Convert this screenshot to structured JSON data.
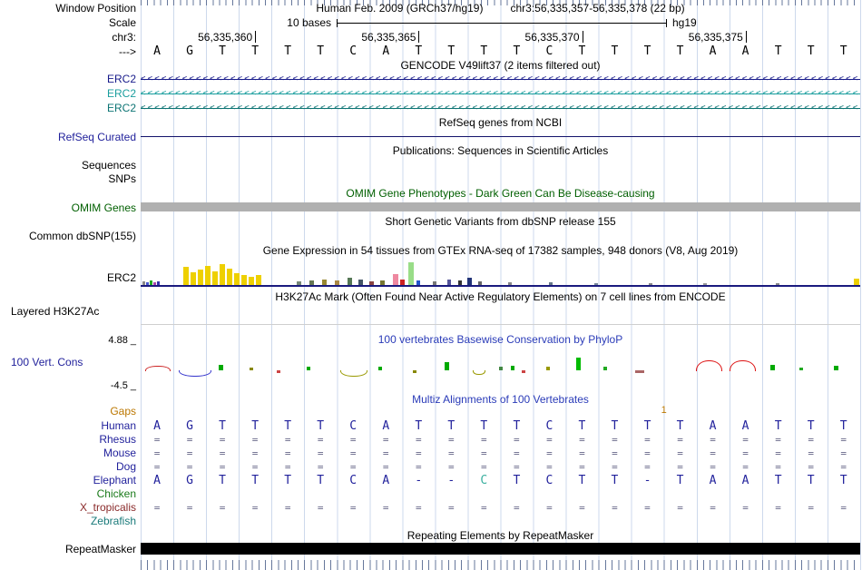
{
  "colors": {
    "guide": "#cdd9ec",
    "tick": "#66779b",
    "link_blue": "#22229c",
    "title_blue": "#2a3bb8",
    "omim_green": "#005f00",
    "gaps_orange": "#bb7700",
    "gencode1": "#171a8a",
    "gencode2": "#1b9e9e",
    "gencode3": "#0d7474",
    "equals": "#666688",
    "gtex_baseline": "#1a1a7e",
    "omim_bar": "#b0b0b0",
    "repeat_bar": "#000000",
    "refseq_line": "#14146b",
    "chicken_green": "#1a7a1a",
    "xtrop_red": "#8a2a2a",
    "zebrafish_teal": "#1a7a7a",
    "elephant_mismatch": "#3aaf9f"
  },
  "header": {
    "window_position_label": "Window Position",
    "assembly_title": "Human Feb. 2009 (GRCh37/hg19)",
    "position": "chr3:56,335,357-56,335,378 (22 bp)",
    "scale_label": "Scale",
    "scale_value": "10 bases",
    "assembly_tag": "hg19",
    "chrom_label": "chr3:",
    "strand_label": "--->",
    "ruler_coords": [
      {
        "text": "56,335,360",
        "base": 4
      },
      {
        "text": "56,335,365",
        "base": 9
      },
      {
        "text": "56,335,370",
        "base": 14
      },
      {
        "text": "56,335,375",
        "base": 19
      }
    ]
  },
  "sequence": [
    "A",
    "G",
    "T",
    "T",
    "T",
    "T",
    "C",
    "A",
    "T",
    "T",
    "T",
    "T",
    "C",
    "T",
    "T",
    "T",
    "T",
    "A",
    "A",
    "T",
    "T",
    "T"
  ],
  "tracks": {
    "gencode": {
      "title": "GENCODE V49lift37 (2 items filtered out)",
      "arrow_char": "<",
      "items": [
        {
          "label": "ERC2",
          "color_key": "gencode1"
        },
        {
          "label": "ERC2",
          "color_key": "gencode2"
        },
        {
          "label": "ERC2",
          "color_key": "gencode3"
        }
      ]
    },
    "refseq": {
      "title": "RefSeq genes from NCBI",
      "label": "RefSeq Curated"
    },
    "publications": {
      "title": "Publications: Sequences in Scientific Articles",
      "labels": [
        "Sequences",
        "SNPs"
      ]
    },
    "omim": {
      "title": "OMIM Gene Phenotypes - Dark Green Can Be Disease-causing",
      "label": "OMIM Genes"
    },
    "dbsnp": {
      "title": "Short Genetic Variants from dbSNP release 155",
      "label": "Common dbSNP(155)"
    },
    "gtex": {
      "title": "Gene Expression in 54 tissues from GTEx RNA-seq of 17382 samples, 948 donors (V8, Aug 2019)",
      "label": "ERC2",
      "bars": [
        [
          2,
          4,
          "#888888",
          3
        ],
        [
          6,
          3,
          "#4455cc",
          3
        ],
        [
          10,
          5,
          "#22aa22",
          3
        ],
        [
          14,
          3,
          "#aa44aa",
          3
        ],
        [
          18,
          4,
          "#3333aa",
          3
        ],
        [
          47,
          20,
          "#eed000",
          6
        ],
        [
          55,
          14,
          "#eed000",
          6
        ],
        [
          63,
          17,
          "#eed000",
          6
        ],
        [
          71,
          21,
          "#eed000",
          6
        ],
        [
          79,
          15,
          "#eed000",
          6
        ],
        [
          87,
          23,
          "#eed000",
          6
        ],
        [
          95,
          18,
          "#eed000",
          6
        ],
        [
          103,
          13,
          "#eed000",
          6
        ],
        [
          111,
          11,
          "#eed000",
          6
        ],
        [
          119,
          9,
          "#eed000",
          6
        ],
        [
          127,
          11,
          "#eed000",
          6
        ],
        [
          172,
          4,
          "#778877",
          5
        ],
        [
          186,
          5,
          "#667755",
          5
        ],
        [
          200,
          6,
          "#998833",
          5
        ],
        [
          214,
          5,
          "#aa8844",
          5
        ],
        [
          228,
          8,
          "#557755",
          5
        ],
        [
          240,
          6,
          "#445566",
          5
        ],
        [
          252,
          4,
          "#884444",
          5
        ],
        [
          264,
          5,
          "#777733",
          5
        ],
        [
          278,
          12,
          "#ee88a0",
          6
        ],
        [
          286,
          6,
          "#cc2222",
          5
        ],
        [
          295,
          25,
          "#99dd88",
          6
        ],
        [
          304,
          5,
          "#2255cc",
          4
        ],
        [
          322,
          4,
          "#777777",
          4
        ],
        [
          338,
          6,
          "#555599",
          4
        ],
        [
          350,
          5,
          "#333333",
          4
        ],
        [
          360,
          8,
          "#223377",
          5
        ],
        [
          372,
          4,
          "#666666",
          4
        ],
        [
          405,
          3,
          "#888888",
          4
        ],
        [
          450,
          3,
          "#667788",
          4
        ],
        [
          500,
          2,
          "#778899",
          4
        ],
        [
          560,
          2,
          "#888888",
          4
        ],
        [
          620,
          2,
          "#999999",
          4
        ],
        [
          700,
          2,
          "#888888",
          4
        ],
        [
          786,
          7,
          "#eed000",
          6
        ]
      ]
    },
    "h3k27ac": {
      "title": "H3K27Ac Mark (Often Found Near Active Regulatory Elements) on 7 cell lines from ENCODE",
      "label": "Layered H3K27Ac"
    },
    "phylop": {
      "title": "100 vertebrates Basewise Conservation by PhyloP",
      "label": "100 Vert. Cons",
      "max_label": "4.88 _",
      "min_label": "-4.5 _",
      "marks": [
        [
          5,
          26,
          5,
          "#cc2222",
          "bump"
        ],
        [
          42,
          34,
          6,
          "#3333cc",
          "dip"
        ],
        [
          86,
          5,
          6,
          "#00aa00",
          "up"
        ],
        [
          120,
          4,
          3,
          "#888800",
          "up"
        ],
        [
          150,
          4,
          3,
          "#cc4444",
          "down"
        ],
        [
          183,
          4,
          4,
          "#00aa00",
          "up"
        ],
        [
          220,
          28,
          6,
          "#999900",
          "dip"
        ],
        [
          262,
          4,
          4,
          "#00aa00",
          "up"
        ],
        [
          300,
          4,
          3,
          "#888800",
          "down"
        ],
        [
          335,
          5,
          9,
          "#00aa00",
          "up"
        ],
        [
          366,
          12,
          4,
          "#999900",
          "dip"
        ],
        [
          395,
          4,
          4,
          "#448844",
          "up"
        ],
        [
          408,
          4,
          5,
          "#00aa00",
          "up"
        ],
        [
          420,
          4,
          3,
          "#cc4444",
          "down"
        ],
        [
          447,
          4,
          4,
          "#999900",
          "up"
        ],
        [
          480,
          5,
          14,
          "#00bb00",
          "up"
        ],
        [
          510,
          4,
          4,
          "#22aa22",
          "up"
        ],
        [
          545,
          10,
          3,
          "#aa6666",
          "down"
        ],
        [
          612,
          27,
          11,
          "#dd1111",
          "bump"
        ],
        [
          649,
          27,
          11,
          "#dd1111",
          "bump"
        ],
        [
          694,
          5,
          6,
          "#00aa00",
          "up"
        ],
        [
          726,
          4,
          3,
          "#22aa22",
          "up"
        ],
        [
          764,
          5,
          5,
          "#00aa00",
          "up"
        ]
      ]
    },
    "multiz": {
      "title": "Multiz Alignments of 100 Vertebrates",
      "gaps_label": "Gaps",
      "gap_marks": [
        {
          "boundary": 16,
          "text": "1"
        }
      ],
      "rows": [
        {
          "label": "Human",
          "type": "seq",
          "color_key": "link_blue",
          "cells": [
            "A",
            "G",
            "T",
            "T",
            "T",
            "T",
            "C",
            "A",
            "T",
            "T",
            "T",
            "T",
            "C",
            "T",
            "T",
            "T",
            "T",
            "A",
            "A",
            "T",
            "T",
            "T"
          ]
        },
        {
          "label": "Rhesus",
          "type": "fill",
          "fill": "=",
          "color_key": "link_blue"
        },
        {
          "label": "Mouse",
          "type": "fill",
          "fill": "=",
          "color_key": "link_blue"
        },
        {
          "label": "Dog",
          "type": "fill",
          "fill": "=",
          "color_key": "link_blue"
        },
        {
          "label": "Elephant",
          "type": "seq",
          "color_key": "link_blue",
          "highlight_col": 11,
          "cells": [
            "A",
            "G",
            "T",
            "T",
            "T",
            "T",
            "C",
            "A",
            "-",
            "-",
            "C",
            "T",
            "C",
            "T",
            "T",
            "-",
            "T",
            "A",
            "A",
            "T",
            "T",
            "T"
          ]
        },
        {
          "label": "Chicken",
          "type": "empty",
          "color_key": "chicken_green"
        },
        {
          "label": "X_tropicalis",
          "type": "fill",
          "fill": "=",
          "color_key": "xtrop_red"
        },
        {
          "label": "Zebrafish",
          "type": "empty",
          "color_key": "zebrafish_teal"
        }
      ]
    },
    "repeat": {
      "title": "Repeating Elements by RepeatMasker",
      "label": "RepeatMasker"
    }
  }
}
